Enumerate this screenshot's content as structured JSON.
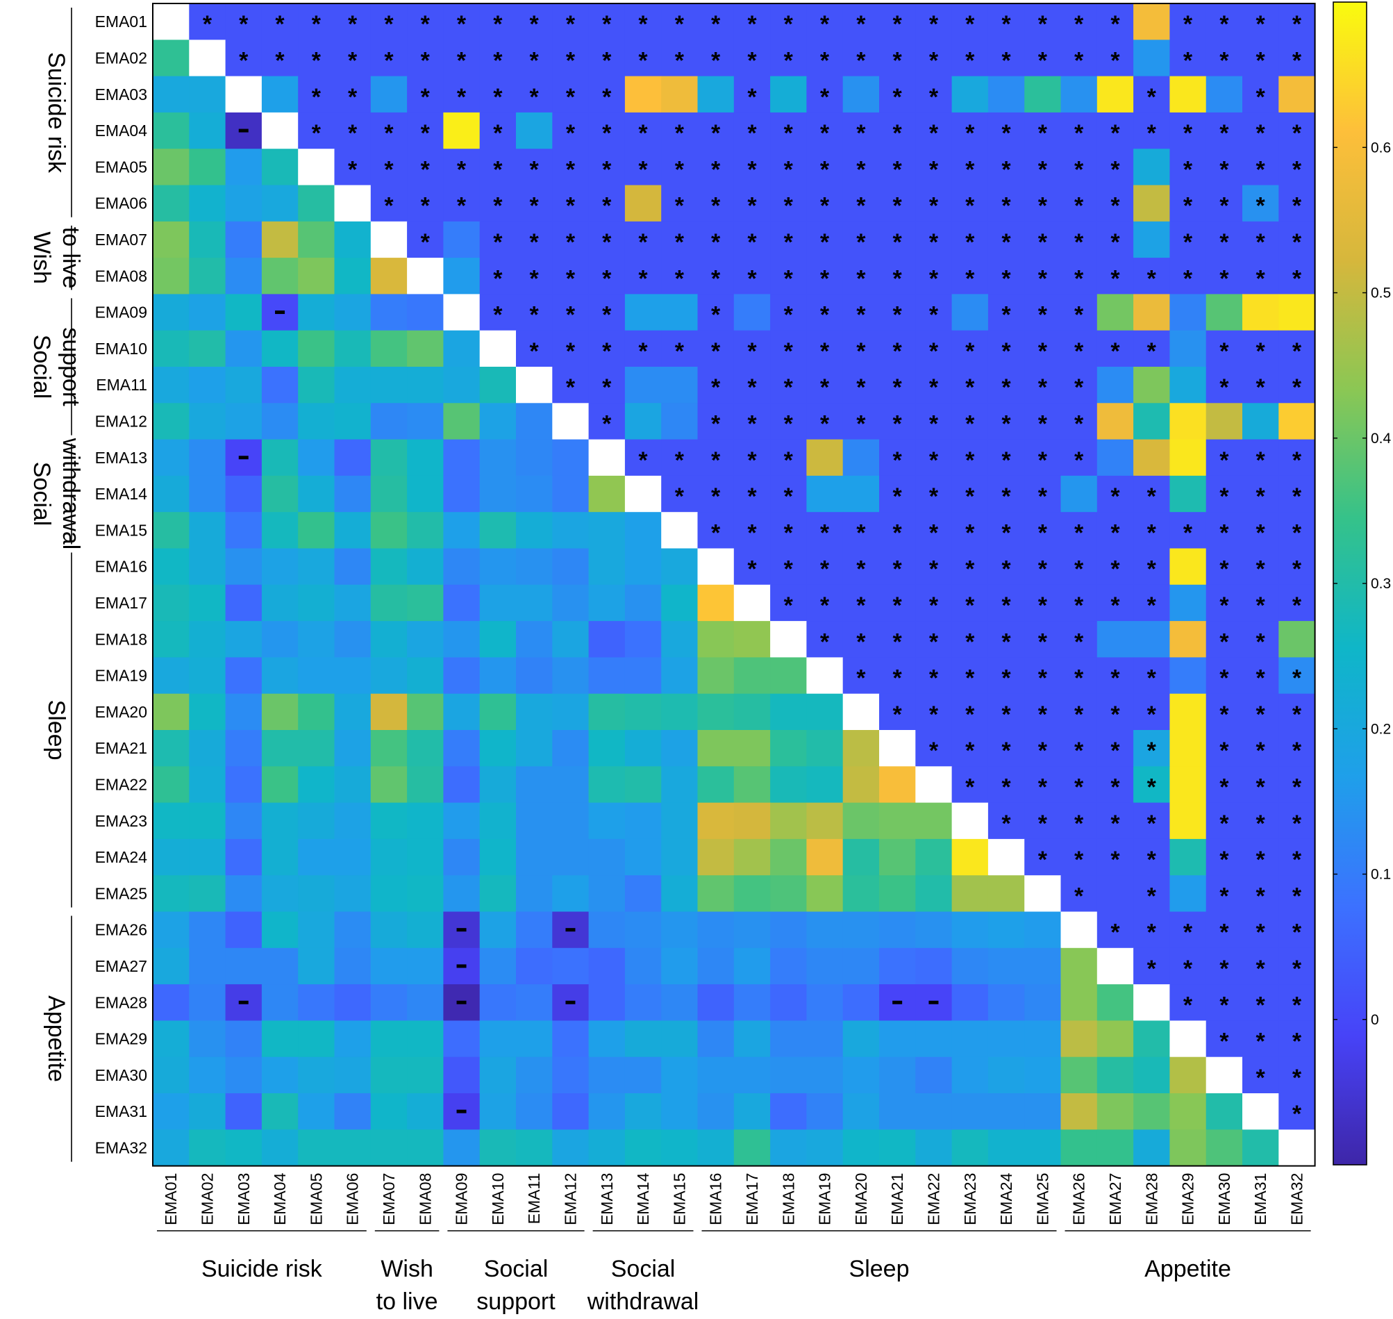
{
  "chart_data": {
    "type": "heatmap",
    "labels": [
      "EMA01",
      "EMA02",
      "EMA03",
      "EMA04",
      "EMA05",
      "EMA06",
      "EMA07",
      "EMA08",
      "EMA09",
      "EMA10",
      "EMA11",
      "EMA12",
      "EMA13",
      "EMA14",
      "EMA15",
      "EMA16",
      "EMA17",
      "EMA18",
      "EMA19",
      "EMA20",
      "EMA21",
      "EMA22",
      "EMA23",
      "EMA24",
      "EMA25",
      "EMA26",
      "EMA27",
      "EMA28",
      "EMA29",
      "EMA30",
      "EMA31",
      "EMA32"
    ],
    "groups": [
      {
        "label": [
          "Suicide risk"
        ],
        "start": 1,
        "end": 6
      },
      {
        "label": [
          "Wish",
          "to live"
        ],
        "start": 7,
        "end": 8
      },
      {
        "label": [
          "Social",
          "support"
        ],
        "start": 9,
        "end": 12
      },
      {
        "label": [
          "Social",
          "withdrawal"
        ],
        "start": 13,
        "end": 15
      },
      {
        "label": [
          "Sleep"
        ],
        "start": 16,
        "end": 25
      },
      {
        "label": [
          "Appetite"
        ],
        "start": 26,
        "end": 32
      }
    ],
    "colorbar_ticks": [
      "0",
      "0.1",
      "0.2",
      "0.3",
      "0.4",
      "0.5",
      "0.6"
    ],
    "colorbar_range": [
      -0.1,
      0.7
    ],
    "colormap": [
      "#3e26a8",
      "#4743f8",
      "#3c71ff",
      "#1f9fea",
      "#0fb6c8",
      "#35c28a",
      "#8bc754",
      "#d6b73c",
      "#fdbf3a",
      "#f9fb0e"
    ],
    "diagonal_color": "#ffffff",
    "lower_triangle_rows": [
      [],
      [
        0.33
      ],
      [
        0.2,
        0.2
      ],
      [
        0.32,
        0.22,
        -0.07
      ],
      [
        0.4,
        0.34,
        0.16,
        0.28
      ],
      [
        0.31,
        0.24,
        0.18,
        0.2,
        0.31
      ],
      [
        0.42,
        0.28,
        0.1,
        0.5,
        0.38,
        0.24
      ],
      [
        0.41,
        0.3,
        0.13,
        0.39,
        0.42,
        0.26,
        0.53
      ],
      [
        0.21,
        0.18,
        0.26,
        0.0,
        0.22,
        0.19,
        0.1,
        0.09
      ],
      [
        0.28,
        0.3,
        0.15,
        0.26,
        0.35,
        0.28,
        0.36,
        0.39,
        0.19
      ],
      [
        0.2,
        0.17,
        0.2,
        0.08,
        0.28,
        0.22,
        0.22,
        0.22,
        0.2,
        0.28
      ],
      [
        0.28,
        0.2,
        0.18,
        0.13,
        0.23,
        0.24,
        0.12,
        0.13,
        0.38,
        0.18,
        0.12
      ],
      [
        0.18,
        0.13,
        -0.01,
        0.28,
        0.16,
        0.06,
        0.3,
        0.25,
        0.08,
        0.14,
        0.12,
        0.1
      ],
      [
        0.21,
        0.13,
        0.05,
        0.31,
        0.22,
        0.12,
        0.31,
        0.25,
        0.08,
        0.14,
        0.13,
        0.1,
        0.44
      ],
      [
        0.31,
        0.21,
        0.09,
        0.27,
        0.34,
        0.22,
        0.35,
        0.3,
        0.17,
        0.29,
        0.22,
        0.19,
        0.2,
        0.17
      ],
      [
        0.26,
        0.21,
        0.14,
        0.18,
        0.2,
        0.12,
        0.27,
        0.23,
        0.12,
        0.15,
        0.14,
        0.12,
        0.2,
        0.17,
        0.2
      ],
      [
        0.28,
        0.26,
        0.06,
        0.21,
        0.23,
        0.19,
        0.31,
        0.32,
        0.08,
        0.18,
        0.18,
        0.14,
        0.18,
        0.14,
        0.25,
        0.62
      ],
      [
        0.27,
        0.23,
        0.19,
        0.15,
        0.18,
        0.14,
        0.23,
        0.19,
        0.15,
        0.25,
        0.13,
        0.19,
        0.05,
        0.08,
        0.2,
        0.43,
        0.44
      ],
      [
        0.2,
        0.22,
        0.08,
        0.19,
        0.17,
        0.17,
        0.2,
        0.23,
        0.09,
        0.15,
        0.11,
        0.14,
        0.1,
        0.1,
        0.18,
        0.4,
        0.37,
        0.37
      ],
      [
        0.42,
        0.26,
        0.13,
        0.4,
        0.34,
        0.2,
        0.52,
        0.38,
        0.19,
        0.33,
        0.2,
        0.19,
        0.31,
        0.3,
        0.29,
        0.32,
        0.31,
        0.27,
        0.27
      ],
      [
        0.29,
        0.21,
        0.1,
        0.3,
        0.3,
        0.18,
        0.36,
        0.3,
        0.1,
        0.25,
        0.2,
        0.13,
        0.26,
        0.22,
        0.18,
        0.42,
        0.42,
        0.32,
        0.3,
        0.49
      ],
      [
        0.33,
        0.22,
        0.08,
        0.35,
        0.25,
        0.21,
        0.39,
        0.31,
        0.07,
        0.21,
        0.14,
        0.14,
        0.29,
        0.3,
        0.2,
        0.32,
        0.38,
        0.28,
        0.27,
        0.5,
        0.6
      ],
      [
        0.26,
        0.26,
        0.12,
        0.23,
        0.21,
        0.18,
        0.26,
        0.25,
        0.16,
        0.24,
        0.14,
        0.14,
        0.17,
        0.16,
        0.2,
        0.53,
        0.52,
        0.46,
        0.49,
        0.4,
        0.41,
        0.41
      ],
      [
        0.22,
        0.22,
        0.07,
        0.23,
        0.17,
        0.17,
        0.24,
        0.25,
        0.12,
        0.25,
        0.14,
        0.14,
        0.14,
        0.16,
        0.2,
        0.5,
        0.46,
        0.4,
        0.58,
        0.31,
        0.38,
        0.32,
        0.67
      ],
      [
        0.27,
        0.28,
        0.13,
        0.2,
        0.21,
        0.19,
        0.25,
        0.26,
        0.15,
        0.27,
        0.14,
        0.17,
        0.14,
        0.1,
        0.22,
        0.39,
        0.36,
        0.37,
        0.43,
        0.32,
        0.35,
        0.3,
        0.46,
        0.46
      ],
      [
        0.18,
        0.12,
        0.05,
        0.25,
        0.2,
        0.13,
        0.21,
        0.23,
        -0.05,
        0.18,
        0.1,
        -0.05,
        0.12,
        0.13,
        0.15,
        0.13,
        0.14,
        0.12,
        0.14,
        0.14,
        0.13,
        0.14,
        0.16,
        0.17,
        0.16
      ],
      [
        0.2,
        0.12,
        0.12,
        0.12,
        0.2,
        0.12,
        0.16,
        0.16,
        -0.02,
        0.13,
        0.07,
        0.08,
        0.06,
        0.12,
        0.16,
        0.12,
        0.16,
        0.1,
        0.12,
        0.12,
        0.08,
        0.07,
        0.12,
        0.13,
        0.13,
        0.43
      ],
      [
        0.06,
        0.11,
        -0.03,
        0.12,
        0.09,
        0.06,
        0.1,
        0.12,
        -0.09,
        0.09,
        0.1,
        -0.03,
        0.06,
        0.1,
        0.12,
        0.05,
        0.1,
        0.06,
        0.1,
        0.07,
        -0.01,
        -0.01,
        0.06,
        0.1,
        0.12,
        0.43,
        0.36
      ],
      [
        0.22,
        0.14,
        0.11,
        0.26,
        0.26,
        0.17,
        0.26,
        0.26,
        0.07,
        0.17,
        0.17,
        0.08,
        0.17,
        0.21,
        0.21,
        0.12,
        0.19,
        0.12,
        0.12,
        0.2,
        0.16,
        0.16,
        0.16,
        0.16,
        0.16,
        0.49,
        0.44,
        0.3
      ],
      [
        0.21,
        0.16,
        0.13,
        0.17,
        0.2,
        0.19,
        0.27,
        0.27,
        0.03,
        0.19,
        0.14,
        0.09,
        0.13,
        0.13,
        0.17,
        0.15,
        0.15,
        0.14,
        0.14,
        0.16,
        0.14,
        0.11,
        0.16,
        0.18,
        0.17,
        0.38,
        0.31,
        0.28,
        0.48
      ],
      [
        0.17,
        0.21,
        0.05,
        0.28,
        0.17,
        0.11,
        0.25,
        0.22,
        -0.02,
        0.18,
        0.13,
        0.06,
        0.15,
        0.2,
        0.17,
        0.14,
        0.2,
        0.07,
        0.11,
        0.18,
        0.14,
        0.14,
        0.14,
        0.14,
        0.14,
        0.5,
        0.42,
        0.38,
        0.43,
        0.3
      ],
      [
        0.2,
        0.27,
        0.26,
        0.22,
        0.27,
        0.27,
        0.27,
        0.27,
        0.15,
        0.28,
        0.27,
        0.19,
        0.22,
        0.26,
        0.25,
        0.23,
        0.33,
        0.19,
        0.2,
        0.25,
        0.26,
        0.21,
        0.27,
        0.24,
        0.24,
        0.34,
        0.34,
        0.21,
        0.42,
        0.37,
        0.3
      ]
    ],
    "upper_filled": {
      "0,27": 0.59,
      "1,27": 0.15,
      "2,3": 0.17,
      "2,6": 0.15,
      "2,13": 0.61,
      "2,14": 0.58,
      "2,15": 0.2,
      "2,17": 0.22,
      "2,19": 0.14,
      "2,22": 0.2,
      "2,23": 0.13,
      "2,24": 0.32,
      "2,25": 0.14,
      "2,26": 0.67,
      "2,28": 0.67,
      "2,29": 0.13,
      "2,31": 0.59,
      "3,8": 0.68,
      "3,10": 0.19,
      "4,27": 0.21,
      "5,13": 0.52,
      "5,27": 0.5,
      "5,30": 0.14,
      "6,8": 0.1,
      "6,27": 0.18,
      "7,8": 0.16,
      "8,13": 0.17,
      "8,14": 0.17,
      "8,16": 0.1,
      "8,22": 0.13,
      "8,26": 0.41,
      "8,27": 0.57,
      "8,28": 0.11,
      "8,29": 0.38,
      "8,30": 0.66,
      "8,31": 0.67,
      "9,28": 0.14,
      "10,13": 0.13,
      "10,14": 0.13,
      "10,26": 0.13,
      "10,27": 0.42,
      "10,28": 0.2,
      "11,13": 0.19,
      "11,14": 0.12,
      "11,26": 0.58,
      "11,27": 0.29,
      "11,28": 0.66,
      "11,29": 0.5,
      "11,30": 0.21,
      "11,31": 0.63,
      "12,18": 0.51,
      "12,19": 0.12,
      "12,26": 0.11,
      "12,27": 0.53,
      "12,28": 0.67,
      "13,18": 0.17,
      "13,19": 0.17,
      "13,25": 0.15,
      "13,28": 0.29,
      "15,28": 0.67,
      "16,28": 0.15,
      "17,26": 0.13,
      "17,27": 0.13,
      "17,28": 0.59,
      "17,31": 0.4,
      "18,28": 0.1,
      "18,31": 0.13,
      "19,28": 0.67,
      "20,27": 0.19,
      "20,28": 0.67,
      "21,27": 0.26,
      "21,28": 0.67,
      "22,28": 0.67,
      "23,28": 0.29,
      "24,28": 0.16
    },
    "upper_default_value": 0.02,
    "no_star_cells": [
      "2,3",
      "2,6",
      "2,13",
      "2,14",
      "2,15",
      "2,17",
      "2,19",
      "2,22",
      "2,23",
      "2,24",
      "2,25",
      "2,26",
      "2,28",
      "2,29",
      "2,31",
      "3,8",
      "3,10",
      "5,13",
      "6,8",
      "7,8",
      "8,13",
      "8,14",
      "8,16",
      "8,22",
      "8,26",
      "8,27",
      "8,28",
      "8,29",
      "8,30",
      "8,31",
      "10,13",
      "10,14",
      "10,26",
      "10,27",
      "10,28",
      "11,13",
      "11,14",
      "11,26",
      "11,27",
      "11,28",
      "11,29",
      "11,30",
      "11,31",
      "12,18",
      "12,19",
      "12,26",
      "12,27",
      "12,28",
      "13,18",
      "13,19",
      "13,25",
      "13,28",
      "17,26",
      "17,27",
      "17,28",
      "17,31",
      "18,28",
      "19,28",
      "20,28",
      "21,28",
      "22,28",
      "23,28",
      "24,28",
      "24,26",
      "0,27",
      "1,27",
      "4,27",
      "5,27",
      "6,27",
      "9,28",
      "15,28",
      "16,28"
    ],
    "minus_marks": [
      "3,2",
      "8,3",
      "12,2",
      "25,8",
      "25,11",
      "26,8",
      "27,2",
      "27,8",
      "27,11",
      "27,20",
      "27,21",
      "30,8"
    ]
  }
}
